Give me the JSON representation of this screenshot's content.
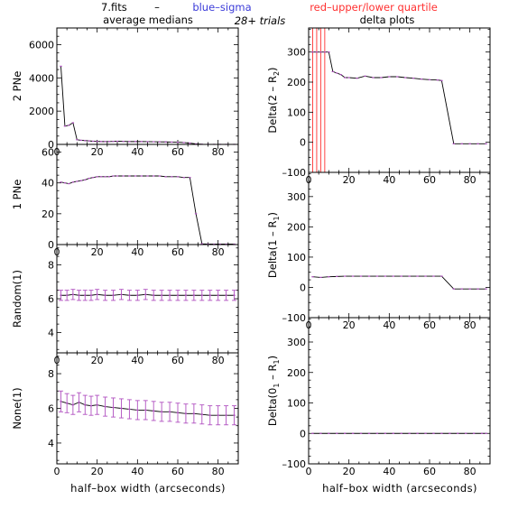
{
  "header": {
    "file": "7.fits",
    "dash": "–",
    "blue_label": "blue–sigma",
    "red_label": "red–upper/lower quartile",
    "left_title": "average medians",
    "trials": "28+ trials",
    "right_title": "delta plots"
  },
  "colors": {
    "blue": "#3b3bd9",
    "red": "#ff3030",
    "purple": "#b050c0",
    "line": "#000000"
  },
  "xlabel": "half–box width (arcseconds)",
  "chart_data": [
    {
      "type": "line",
      "ylabel": "2 PNe",
      "xlim": [
        0,
        90
      ],
      "ylim": [
        0,
        7000
      ],
      "xticks": [
        0,
        20,
        40,
        60,
        80
      ],
      "xtick_labels": [
        "0",
        "20",
        "40",
        "60",
        "80"
      ],
      "yticks": [
        0,
        2000,
        4000,
        6000
      ],
      "ytick_labels": [
        "0",
        "2000",
        "4000",
        "6000"
      ],
      "x": [
        2,
        4,
        6,
        8,
        10,
        12,
        14,
        16,
        18,
        20,
        22,
        24,
        26,
        28,
        30,
        33,
        36,
        39,
        42,
        45,
        48,
        51,
        54,
        57,
        60,
        63,
        66,
        69,
        72,
        75,
        78,
        81,
        84,
        88
      ],
      "y": [
        4700,
        1100,
        1150,
        1300,
        280,
        250,
        230,
        210,
        190,
        180,
        170,
        170,
        175,
        180,
        190,
        180,
        170,
        175,
        170,
        165,
        160,
        155,
        150,
        140,
        130,
        110,
        80,
        30,
        10,
        5,
        3,
        2,
        2,
        2
      ]
    },
    {
      "type": "line",
      "ylabel": "1 PNe",
      "xlim": [
        0,
        90
      ],
      "ylim": [
        0,
        65
      ],
      "xticks": [
        0,
        20,
        40,
        60,
        80
      ],
      "xtick_labels": [
        "0",
        "20",
        "40",
        "60",
        "80"
      ],
      "yticks": [
        0,
        20,
        40,
        60
      ],
      "ytick_labels": [
        "0",
        "20",
        "40",
        "60"
      ],
      "x": [
        2,
        4,
        6,
        8,
        10,
        12,
        14,
        16,
        18,
        20,
        22,
        24,
        26,
        28,
        30,
        33,
        36,
        39,
        42,
        45,
        48,
        51,
        54,
        57,
        60,
        63,
        66,
        69,
        72,
        75,
        78,
        81,
        84,
        88
      ],
      "y": [
        40.5,
        40,
        39.5,
        40.5,
        41,
        41.5,
        42,
        43,
        43.5,
        44,
        44,
        44,
        44,
        44.5,
        44.5,
        44.5,
        44.5,
        44.5,
        44.5,
        44.5,
        44.5,
        44.5,
        44,
        44,
        44,
        43.5,
        43.5,
        20,
        0.5,
        0.3,
        0.3,
        0.3,
        0.3,
        0.3
      ]
    },
    {
      "type": "line",
      "ylabel": "Random(1)",
      "xlim": [
        0,
        90
      ],
      "ylim": [
        2.8,
        9.2
      ],
      "xticks": [
        0,
        20,
        40,
        60,
        80
      ],
      "xtick_labels": [
        "0",
        "20",
        "40",
        "60",
        "80"
      ],
      "yticks": [
        4,
        6,
        8
      ],
      "ytick_labels": [
        "4",
        "6",
        "8"
      ],
      "x": [
        2,
        5,
        8,
        11,
        14,
        17,
        20,
        24,
        28,
        32,
        36,
        40,
        44,
        48,
        52,
        56,
        60,
        64,
        68,
        72,
        76,
        80,
        84,
        88
      ],
      "y": [
        6.2,
        6.2,
        6.25,
        6.2,
        6.2,
        6.2,
        6.25,
        6.2,
        6.2,
        6.25,
        6.2,
        6.2,
        6.25,
        6.2,
        6.2,
        6.2,
        6.2,
        6.2,
        6.2,
        6.2,
        6.2,
        6.2,
        6.2,
        6.2
      ],
      "err": [
        0.3,
        0.3,
        0.3,
        0.3,
        0.3,
        0.3,
        0.3,
        0.3,
        0.3,
        0.3,
        0.3,
        0.3,
        0.3,
        0.3,
        0.3,
        0.3,
        0.3,
        0.3,
        0.3,
        0.3,
        0.3,
        0.3,
        0.3,
        0.3
      ]
    },
    {
      "type": "line",
      "ylabel": "None(1)",
      "xlim": [
        0,
        90
      ],
      "ylim": [
        2.8,
        9.2
      ],
      "xticks": [
        0,
        20,
        40,
        60,
        80
      ],
      "xtick_labels": [
        "0",
        "20",
        "40",
        "60",
        "80"
      ],
      "yticks": [
        4,
        6,
        8
      ],
      "ytick_labels": [
        "4",
        "6",
        "8"
      ],
      "x": [
        2,
        5,
        8,
        11,
        14,
        17,
        20,
        24,
        28,
        32,
        36,
        40,
        44,
        48,
        52,
        56,
        60,
        64,
        68,
        72,
        76,
        80,
        84,
        88
      ],
      "y": [
        6.4,
        6.3,
        6.2,
        6.35,
        6.2,
        6.15,
        6.2,
        6.1,
        6.05,
        6.0,
        5.95,
        5.9,
        5.9,
        5.85,
        5.8,
        5.8,
        5.75,
        5.7,
        5.7,
        5.65,
        5.6,
        5.6,
        5.6,
        5.6
      ],
      "err": [
        0.6,
        0.55,
        0.55,
        0.55,
        0.55,
        0.55,
        0.55,
        0.55,
        0.55,
        0.55,
        0.55,
        0.55,
        0.55,
        0.55,
        0.55,
        0.55,
        0.55,
        0.55,
        0.55,
        0.55,
        0.55,
        0.55,
        0.55,
        0.55
      ]
    },
    {
      "type": "line",
      "ylabel_parts": [
        "Delta(2 – R",
        "2",
        ")"
      ],
      "xlim": [
        0,
        90
      ],
      "ylim": [
        -100,
        380
      ],
      "xticks": [
        0,
        20,
        40,
        60,
        80
      ],
      "xtick_labels": [
        "0",
        "20",
        "40",
        "60",
        "80"
      ],
      "yticks": [
        -100,
        0,
        100,
        200,
        300
      ],
      "ytick_labels": [
        "–100",
        "0",
        "100",
        "200",
        "300"
      ],
      "red_vlines": [
        2,
        4,
        6,
        8
      ],
      "x": [
        2,
        4,
        6,
        8,
        10,
        12,
        14,
        16,
        18,
        20,
        24,
        28,
        32,
        36,
        40,
        44,
        48,
        52,
        56,
        60,
        64,
        66,
        72,
        76,
        80,
        84,
        88
      ],
      "y": [
        300,
        300,
        300,
        300,
        300,
        235,
        230,
        225,
        215,
        215,
        213,
        220,
        215,
        215,
        218,
        218,
        215,
        213,
        210,
        208,
        207,
        205,
        -5,
        -5,
        -5,
        -5,
        -5
      ]
    },
    {
      "type": "line",
      "ylabel_parts": [
        "Delta(1 – R",
        "1",
        ")"
      ],
      "xlim": [
        0,
        90
      ],
      "ylim": [
        -100,
        380
      ],
      "xticks": [
        0,
        20,
        40,
        60,
        80
      ],
      "xtick_labels": [
        "0",
        "20",
        "40",
        "60",
        "80"
      ],
      "yticks": [
        -100,
        0,
        100,
        200,
        300
      ],
      "ytick_labels": [
        "–100",
        "0",
        "100",
        "200",
        "300"
      ],
      "x": [
        2,
        6,
        10,
        14,
        18,
        22,
        26,
        30,
        34,
        38,
        42,
        46,
        50,
        54,
        58,
        62,
        66,
        72,
        76,
        80,
        84,
        88
      ],
      "y": [
        35,
        33,
        35,
        36,
        37,
        37,
        37,
        37,
        37,
        37,
        37,
        37,
        37,
        37,
        37,
        37,
        37,
        -5,
        -5,
        -5,
        -5,
        -5
      ]
    },
    {
      "type": "line",
      "ylabel_parts": [
        "Delta(0",
        "1",
        " – R",
        "1",
        ")"
      ],
      "xlim": [
        0,
        90
      ],
      "ylim": [
        -100,
        380
      ],
      "xticks": [
        0,
        20,
        40,
        60,
        80
      ],
      "xtick_labels": [
        "0",
        "20",
        "40",
        "60",
        "80"
      ],
      "yticks": [
        -100,
        0,
        100,
        200,
        300
      ],
      "ytick_labels": [
        "–100",
        "0",
        "100",
        "200",
        "300"
      ],
      "x": [
        2,
        6,
        10,
        14,
        18,
        22,
        26,
        30,
        34,
        38,
        42,
        46,
        50,
        54,
        58,
        62,
        66,
        70,
        74,
        78,
        82,
        86,
        88
      ],
      "y": [
        0,
        0,
        0,
        0,
        0,
        0,
        0,
        0,
        0,
        0,
        0,
        0,
        0,
        0,
        0,
        0,
        0,
        0,
        0,
        0,
        0,
        0,
        0
      ]
    }
  ]
}
